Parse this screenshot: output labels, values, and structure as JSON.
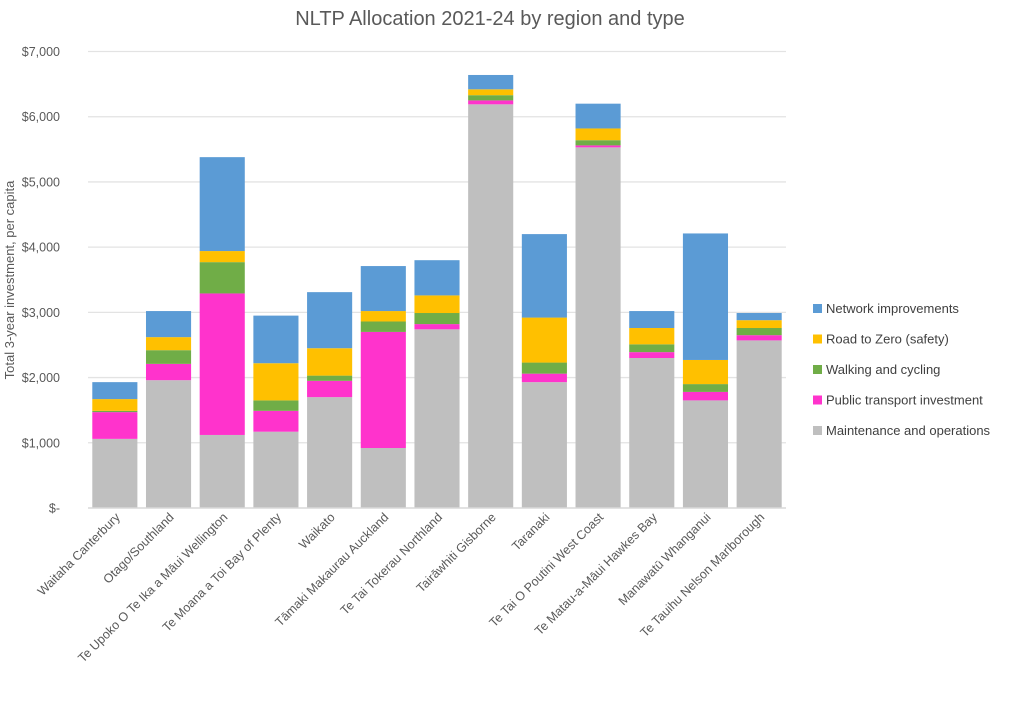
{
  "chart_data": {
    "type": "bar",
    "stacked": true,
    "title": "NLTP Allocation 2021-24 by region and type",
    "xlabel": "",
    "ylabel": "Total 3-year investment, per capita",
    "ylim": [
      0,
      7000
    ],
    "yticks": [
      0,
      1000,
      2000,
      3000,
      4000,
      5000,
      6000,
      7000
    ],
    "ytick_labels": [
      "$-",
      "$1,000",
      "$2,000",
      "$3,000",
      "$4,000",
      "$5,000",
      "$6,000",
      "$7,000"
    ],
    "grid": true,
    "legend_position": "right",
    "categories": [
      "Waitaha Canterbury",
      "Otago/Southland",
      "Te Upoko O Te Ika a Māui Wellington",
      "Te Moana a Toi Bay of Plenty",
      "Waikato",
      "Tāmaki Makaurau Auckland",
      "Te Tai Tokerau Northland",
      "Tairāwhiti Gisborne",
      "Taranaki",
      "Te Tai O Poutini West Coast",
      "Te Matau-a-Māui Hawkes Bay",
      "Manawatū Whanganui",
      "Te Tauihu Nelson Marlborough"
    ],
    "series": [
      {
        "name": "Maintenance and operations",
        "color": "#bfbfbf",
        "values": [
          1060,
          1960,
          1120,
          1170,
          1700,
          920,
          2740,
          6190,
          1930,
          5530,
          2300,
          1650,
          2570
        ]
      },
      {
        "name": "Public transport investment",
        "color": "#ff33cc",
        "values": [
          410,
          250,
          2170,
          320,
          250,
          1780,
          80,
          60,
          130,
          30,
          90,
          130,
          80
        ]
      },
      {
        "name": "Walking and cycling",
        "color": "#70ad47",
        "values": [
          20,
          210,
          480,
          160,
          80,
          160,
          170,
          80,
          170,
          80,
          120,
          120,
          110
        ]
      },
      {
        "name": "Road to Zero (safety)",
        "color": "#ffc000",
        "values": [
          180,
          200,
          170,
          570,
          420,
          160,
          270,
          90,
          690,
          180,
          250,
          370,
          120
        ]
      },
      {
        "name": "Network improvements",
        "color": "#5b9bd5",
        "values": [
          260,
          400,
          1440,
          730,
          860,
          690,
          540,
          220,
          1280,
          380,
          260,
          1940,
          110
        ]
      }
    ],
    "legend_order": [
      "Network improvements",
      "Road to Zero (safety)",
      "Walking and cycling",
      "Public transport investment",
      "Maintenance and operations"
    ]
  }
}
